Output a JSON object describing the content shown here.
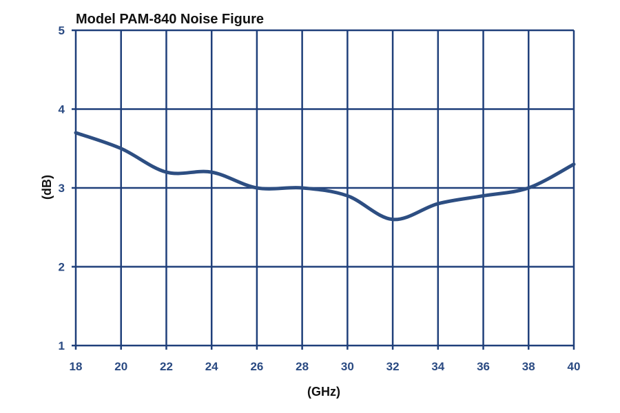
{
  "chart_data": {
    "type": "line",
    "title": "Model PAM-840 Noise Figure",
    "xlabel": "(GHz)",
    "ylabel": "(dB)",
    "xlim": [
      18,
      40
    ],
    "ylim": [
      1,
      5
    ],
    "xticks": [
      "18",
      "20",
      "22",
      "24",
      "26",
      "28",
      "30",
      "32",
      "34",
      "36",
      "38",
      "40"
    ],
    "yticks": [
      "1",
      "2",
      "3",
      "4",
      "5"
    ],
    "grid": true,
    "series": [
      {
        "x": [
          18,
          20,
          22,
          24,
          26,
          28,
          30,
          32,
          34,
          36,
          38,
          40
        ],
        "y": [
          3.7,
          3.5,
          3.2,
          3.2,
          3.0,
          3.0,
          2.9,
          2.6,
          2.8,
          2.9,
          3.0,
          3.3
        ]
      }
    ]
  },
  "colors": {
    "grid": "#1f3f7a",
    "line": "#2d4e82",
    "tick_text": "#2a4a82"
  }
}
